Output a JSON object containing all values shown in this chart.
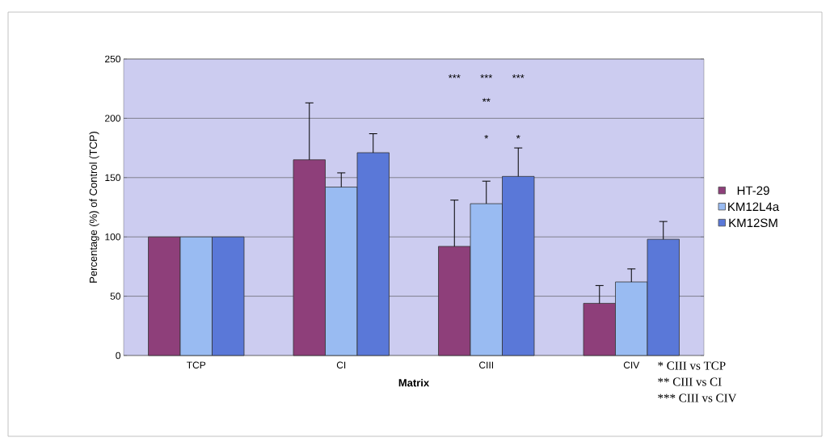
{
  "chart_data": {
    "type": "bar",
    "xlabel": "Matrix",
    "ylabel": "Percentage (%) of Control (TCP)",
    "categories": [
      "TCP",
      "CI",
      "CIII",
      "CIV"
    ],
    "series": [
      {
        "name": "HT-29",
        "color": "#8e3f7a",
        "values": [
          100,
          165,
          92,
          44
        ],
        "errors": [
          null,
          48,
          39,
          15
        ]
      },
      {
        "name": "KM12L4a",
        "color": "#99bbf2",
        "values": [
          100,
          142,
          128,
          62
        ],
        "errors": [
          null,
          12,
          19,
          11
        ]
      },
      {
        "name": "KM12SM",
        "color": "#5a78d8",
        "values": [
          100,
          171,
          151,
          98
        ],
        "errors": [
          null,
          16,
          24,
          15
        ]
      }
    ],
    "ylim": [
      0,
      250
    ],
    "yticks": [
      0,
      50,
      100,
      150,
      200,
      250
    ],
    "grid": "y",
    "legend": "right",
    "annotations": [
      "***",
      "***",
      "***",
      "**",
      "*",
      "*",
      "* CIII vs TCP",
      "** CIII vs CI",
      "*** CIII vs CIV"
    ]
  }
}
